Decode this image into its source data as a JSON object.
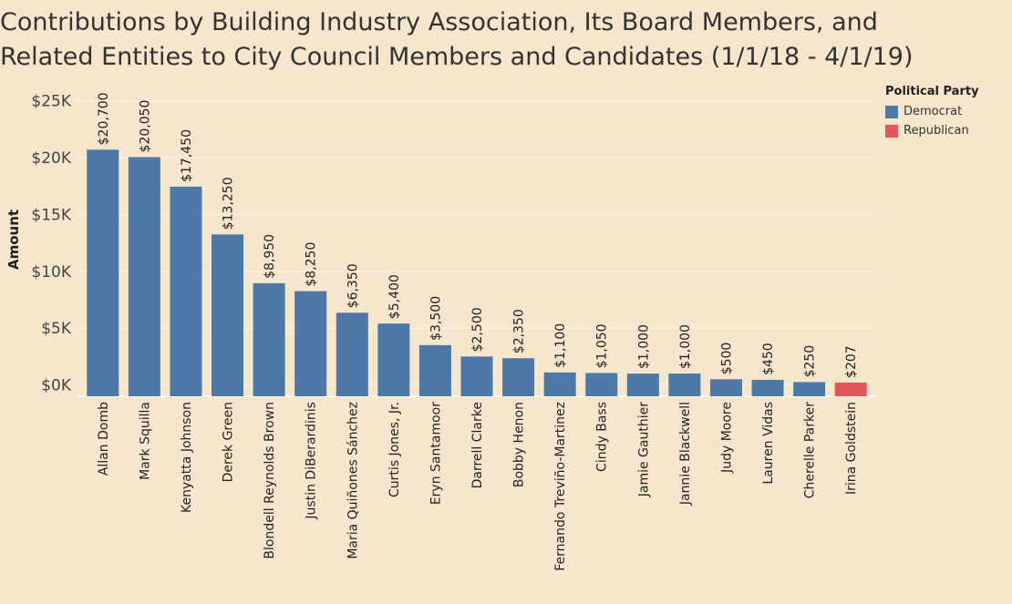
{
  "chart_data": {
    "type": "bar",
    "title_lines": [
      "Contributions by Building Industry Association, Its Board Members, and",
      "Related Entities to City Council Members and Candidates (1/1/18 - 4/1/19)"
    ],
    "ylabel": "Amount",
    "ylim": [
      -1000,
      26500
    ],
    "yticks": [
      0,
      5000,
      10000,
      15000,
      20000,
      25000
    ],
    "ytick_labels": [
      "$0K",
      "$5K",
      "$10K",
      "$15K",
      "$20K",
      "$25K"
    ],
    "grid": true,
    "legend": {
      "title": "Political Party",
      "position": "right",
      "entries": [
        {
          "name": "Democrat",
          "color": "#4e79a7"
        },
        {
          "name": "Republican",
          "color": "#e15759"
        }
      ]
    },
    "categories": [
      "Allan Domb",
      "Mark Squilla",
      "Kenyatta Johnson",
      "Derek Green",
      "Blondell Reynolds Brown",
      "Justin DiBerardinis",
      "Maria Quiñones Sánchez",
      "Curtis Jones, Jr.",
      "Eryn Santamoor",
      "Darrell Clarke",
      "Bobby Henon",
      "Fernando Treviño-Martinez",
      "Cindy Bass",
      "Jamie Gauthier",
      "Jannie Blackwell",
      "Judy Moore",
      "Lauren Vidas",
      "Cherelle Parker",
      "Irina Goldstein"
    ],
    "values": [
      20700,
      20050,
      17450,
      13250,
      8950,
      8250,
      6350,
      5400,
      3500,
      2500,
      2350,
      1100,
      1050,
      1000,
      1000,
      500,
      450,
      250,
      207
    ],
    "value_labels": [
      "$20,700",
      "$20,050",
      "$17,450",
      "$13,250",
      "$8,950",
      "$8,250",
      "$6,350",
      "$5,400",
      "$3,500",
      "$2,500",
      "$2,350",
      "$1,100",
      "$1,050",
      "$1,000",
      "$1,000",
      "$500",
      "$450",
      "$250",
      "$207"
    ],
    "party": [
      "Democrat",
      "Democrat",
      "Democrat",
      "Democrat",
      "Democrat",
      "Democrat",
      "Democrat",
      "Democrat",
      "Democrat",
      "Democrat",
      "Democrat",
      "Democrat",
      "Democrat",
      "Democrat",
      "Democrat",
      "Democrat",
      "Democrat",
      "Democrat",
      "Republican"
    ]
  }
}
